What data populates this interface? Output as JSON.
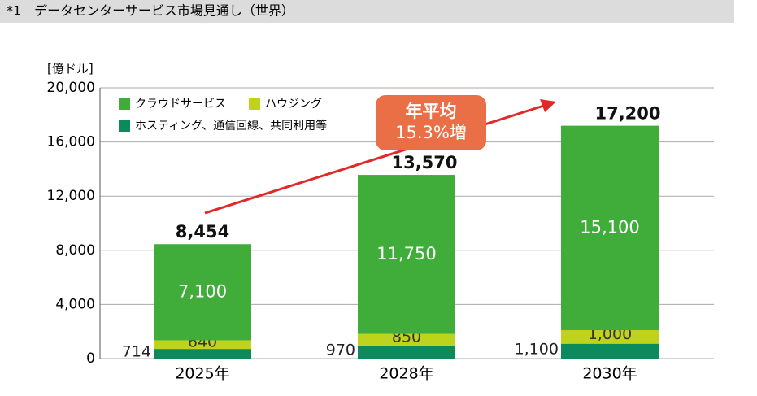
{
  "header": {
    "title": "*1　データセンターサービス市場見通し（世界）"
  },
  "chart_data": {
    "type": "bar",
    "stacked": true,
    "y_unit": "[億ドル]",
    "categories": [
      "2025年",
      "2028年",
      "2030年"
    ],
    "series": [
      {
        "name": "ホスティング、通信回線、共同利用等",
        "color": "#0b8a5c",
        "values": [
          714,
          970,
          1100
        ],
        "value_labels": [
          "714",
          "970",
          "1,100"
        ]
      },
      {
        "name": "ハウジング",
        "color": "#bdd31c",
        "values": [
          640,
          850,
          1000
        ],
        "value_labels": [
          "640",
          "850",
          "1,000"
        ]
      },
      {
        "name": "クラウドサービス",
        "color": "#40ad3b",
        "values": [
          7100,
          11750,
          15100
        ],
        "value_labels": [
          "7,100",
          "11,750",
          "15,100"
        ]
      }
    ],
    "totals": {
      "values": [
        8454,
        13570,
        17200
      ],
      "value_labels": [
        "8,454",
        "13,570",
        "17,200"
      ]
    },
    "annotation": [
      "年平均",
      "15.3%増"
    ],
    "ylim": [
      0,
      20000
    ],
    "yticks": [
      0,
      {
        "value": 4000,
        "label": "4,000"
      },
      {
        "value": 8000,
        "label": "8,000"
      },
      {
        "value": 12000,
        "label": "12,000"
      },
      {
        "value": 16000,
        "label": "16,000"
      },
      {
        "value": 20000,
        "label": "20,000"
      }
    ],
    "grid": true
  }
}
